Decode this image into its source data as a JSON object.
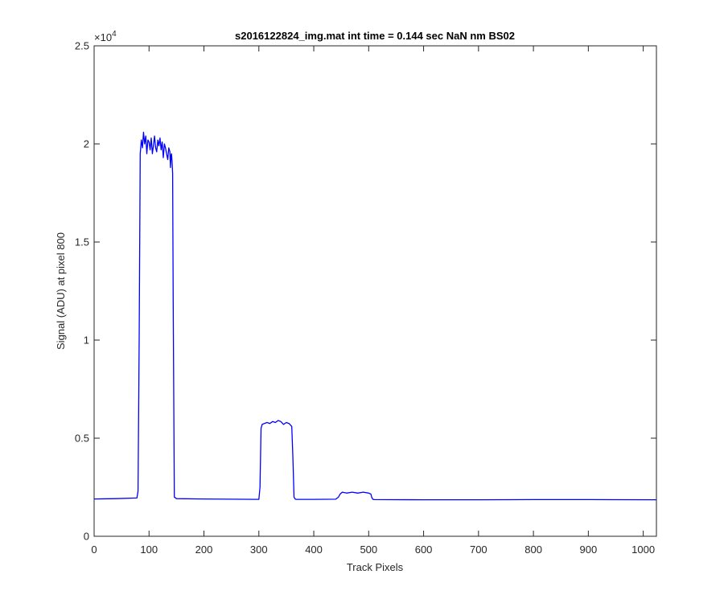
{
  "chart_data": {
    "type": "line",
    "title": "s2016122824_img.mat int time = 0.144 sec  NaN nm BS02",
    "xlabel": "Track Pixels",
    "ylabel": "Signal (ADU) at pixel 800",
    "exponent_label": "×10",
    "exponent_power": "4",
    "xlim": [
      0,
      1024
    ],
    "ylim": [
      0,
      25000
    ],
    "x_ticks": [
      0,
      100,
      200,
      300,
      400,
      500,
      600,
      700,
      800,
      900,
      1000
    ],
    "x_tick_labels": [
      "0",
      "100",
      "200",
      "300",
      "400",
      "500",
      "600",
      "700",
      "800",
      "900",
      "1000"
    ],
    "y_ticks": [
      0,
      5000,
      10000,
      15000,
      20000,
      25000
    ],
    "y_tick_labels": [
      "0",
      "0.5",
      "1",
      "1.5",
      "2",
      "2.5"
    ],
    "grid": false,
    "color": "#0000ff",
    "series": [
      {
        "x": [
          0,
          40,
          78,
          80,
          82,
          84,
          86,
          88,
          90,
          92,
          94,
          96,
          98,
          100,
          102,
          104,
          106,
          108,
          110,
          112,
          114,
          116,
          118,
          120,
          122,
          124,
          126,
          128,
          130,
          132,
          134,
          136,
          138,
          139,
          140,
          141,
          142,
          143,
          144,
          146,
          150,
          200,
          250,
          300,
          302,
          304,
          306,
          310,
          315,
          320,
          325,
          330,
          335,
          340,
          345,
          350,
          355,
          360,
          362,
          364,
          366,
          368,
          400,
          440,
          445,
          448,
          452,
          460,
          470,
          480,
          490,
          500,
          504,
          506,
          508,
          510,
          600,
          700,
          800,
          900,
          1024
        ],
        "y": [
          1900,
          1920,
          1950,
          2300,
          10000,
          19500,
          20200,
          19800,
          20600,
          20000,
          20400,
          19500,
          20200,
          20100,
          19700,
          20300,
          19500,
          19900,
          20400,
          19800,
          19600,
          20200,
          19900,
          20300,
          19700,
          20100,
          19300,
          20000,
          19800,
          19500,
          19200,
          19800,
          19600,
          18800,
          19400,
          19500,
          19100,
          18500,
          12000,
          2000,
          1920,
          1900,
          1890,
          1880,
          2500,
          5500,
          5700,
          5750,
          5800,
          5750,
          5850,
          5800,
          5900,
          5850,
          5700,
          5800,
          5750,
          5600,
          4000,
          2000,
          1900,
          1880,
          1880,
          1890,
          2000,
          2150,
          2250,
          2200,
          2250,
          2200,
          2250,
          2200,
          2150,
          1950,
          1880,
          1870,
          1860,
          1860,
          1870,
          1870,
          1860
        ]
      }
    ]
  }
}
